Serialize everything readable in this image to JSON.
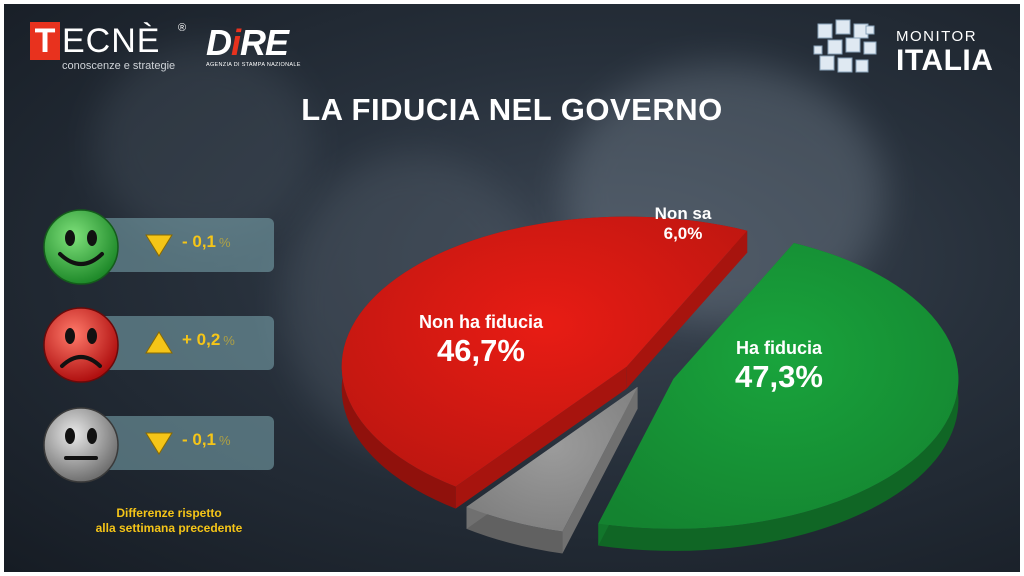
{
  "header": {
    "tecne_logo": {
      "mark": "T",
      "word": "ECNÈ",
      "registered": "®",
      "tagline": "conoscenze e strategie"
    },
    "dire_logo": {
      "word_a": "D",
      "word_i": "i",
      "word_b": "RE",
      "tagline": "AGENZIA DI STAMPA NAZIONALE"
    },
    "monitor_logo": {
      "top": "MONITOR",
      "big": "ITALIA",
      "icon": "cubes-icon"
    },
    "title": "LA FIDUCIA NEL GOVERNO"
  },
  "changes": {
    "items": [
      {
        "icon": "happy-face-icon",
        "face_color": "#2fa83a",
        "arrow": "down",
        "delta": "- 0,1",
        "unit": "%"
      },
      {
        "icon": "sad-face-icon",
        "face_color": "#d81c1c",
        "arrow": "up",
        "delta": "+ 0,2",
        "unit": "%"
      },
      {
        "icon": "neutral-face-icon",
        "face_color": "#9a9a9a",
        "arrow": "down",
        "delta": "- 0,1",
        "unit": "%"
      }
    ],
    "note_line1": "Differenze rispetto",
    "note_line2": "alla settimana precedente",
    "accent_color": "#f5c518"
  },
  "chart_data": {
    "type": "pie",
    "title": "LA FIDUCIA NEL GOVERNO",
    "slices": [
      {
        "label": "Ha fiducia",
        "value": 47.3,
        "display": "47,3%",
        "color": "#19a43c"
      },
      {
        "label": "Non sa",
        "value": 6.0,
        "display": "6,0%",
        "color": "#9c9c9c"
      },
      {
        "label": "Non ha fiducia",
        "value": 46.7,
        "display": "46,7%",
        "color": "#e81c14"
      }
    ],
    "style": "3d-exploded"
  }
}
